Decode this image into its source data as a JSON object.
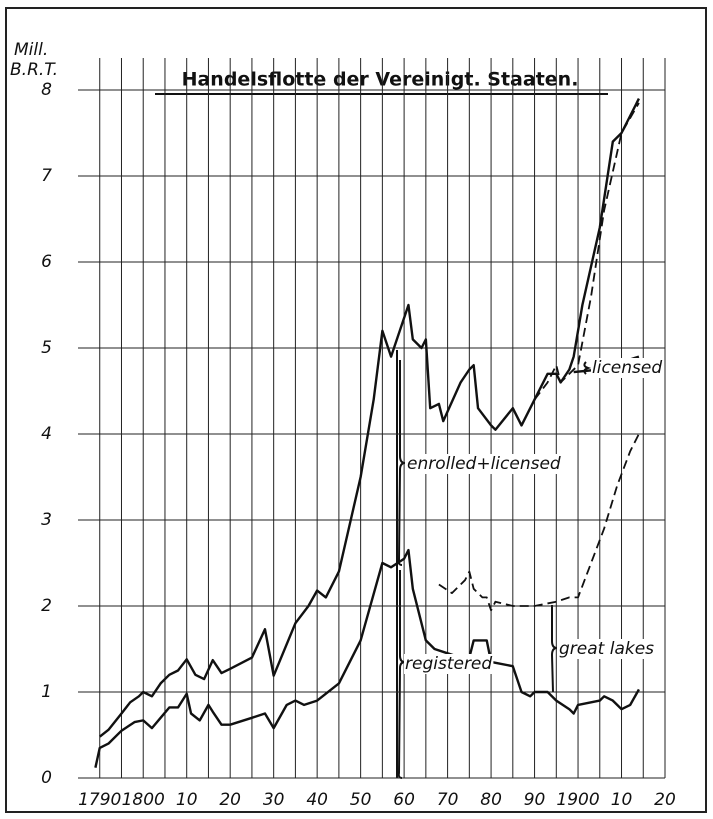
{
  "chart_data": {
    "type": "line",
    "title": "Handelsflotte der Vereinigt. Staaten.",
    "ylabel": [
      "Mill.",
      "B.R.T."
    ],
    "xlim": [
      1785,
      1920
    ],
    "ylim": [
      0,
      8
    ],
    "xticks": [
      {
        "value": 1790,
        "label": "1790"
      },
      {
        "value": 1800,
        "label": "1800"
      },
      {
        "value": 1810,
        "label": "10"
      },
      {
        "value": 1820,
        "label": "20"
      },
      {
        "value": 1830,
        "label": "30"
      },
      {
        "value": 1840,
        "label": "40"
      },
      {
        "value": 1850,
        "label": "50"
      },
      {
        "value": 1860,
        "label": "60"
      },
      {
        "value": 1870,
        "label": "70"
      },
      {
        "value": 1880,
        "label": "80"
      },
      {
        "value": 1890,
        "label": "90"
      },
      {
        "value": 1900,
        "label": "1900"
      },
      {
        "value": 1910,
        "label": "10"
      },
      {
        "value": 1920,
        "label": "20"
      }
    ],
    "yticks": [
      0,
      1,
      2,
      3,
      4,
      5,
      6,
      7,
      8
    ],
    "grid": true,
    "series": [
      {
        "color": "#111",
        "dash": false,
        "x": [
          1790,
          1792,
          1795,
          1797,
          1799,
          1800,
          1802,
          1804,
          1806,
          1808,
          1810,
          1812,
          1814,
          1816,
          1818,
          1820,
          1825,
          1828,
          1830,
          1835,
          1838,
          1840,
          1842,
          1845,
          1850,
          1853,
          1855,
          1857,
          1860,
          1861,
          1862,
          1864,
          1865,
          1866,
          1868,
          1869,
          1873,
          1875,
          1876,
          1877,
          1880,
          1881,
          1885,
          1887,
          1890,
          1893,
          1895,
          1896,
          1898,
          1899,
          1901,
          1905,
          1908,
          1910,
          1914
        ],
        "values": [
          0.48,
          0.56,
          0.75,
          0.88,
          0.95,
          1.0,
          0.95,
          1.1,
          1.2,
          1.25,
          1.38,
          1.2,
          1.15,
          1.37,
          1.22,
          1.27,
          1.4,
          1.73,
          1.19,
          1.8,
          2.0,
          2.18,
          2.1,
          2.4,
          3.5,
          4.4,
          5.2,
          4.9,
          5.35,
          5.5,
          5.1,
          5.0,
          5.1,
          4.3,
          4.35,
          4.15,
          4.6,
          4.75,
          4.8,
          4.3,
          4.1,
          4.05,
          4.3,
          4.1,
          4.4,
          4.7,
          4.7,
          4.6,
          4.75,
          4.9,
          5.5,
          6.4,
          7.4,
          7.5,
          7.9
        ]
      },
      {
        "color": "#111",
        "dash": false,
        "x": [
          1789,
          1790,
          1792,
          1795,
          1798,
          1800,
          1802,
          1804,
          1806,
          1808,
          1810,
          1811,
          1813,
          1815,
          1816,
          1818,
          1820,
          1825,
          1828,
          1830,
          1833,
          1835,
          1837,
          1840,
          1845,
          1850,
          1855,
          1857,
          1860,
          1861,
          1862,
          1865,
          1867,
          1870,
          1873,
          1875,
          1876,
          1879,
          1880,
          1885,
          1887,
          1889,
          1890,
          1893,
          1895,
          1898,
          1899,
          1900,
          1905,
          1906,
          1908,
          1909,
          1910,
          1912,
          1914
        ],
        "values": [
          0.12,
          0.35,
          0.4,
          0.55,
          0.65,
          0.67,
          0.58,
          0.7,
          0.82,
          0.82,
          0.98,
          0.75,
          0.67,
          0.85,
          0.77,
          0.62,
          0.62,
          0.7,
          0.75,
          0.58,
          0.85,
          0.9,
          0.85,
          0.9,
          1.1,
          1.6,
          2.5,
          2.45,
          2.55,
          2.65,
          2.2,
          1.6,
          1.5,
          1.45,
          1.4,
          1.4,
          1.6,
          1.6,
          1.35,
          1.3,
          1.0,
          0.95,
          1.0,
          1.0,
          0.9,
          0.8,
          0.75,
          0.85,
          0.9,
          0.95,
          0.9,
          0.85,
          0.8,
          0.85,
          1.03
        ]
      },
      {
        "color": "#111",
        "dash": true,
        "x": [
          1868,
          1871,
          1874,
          1875,
          1876,
          1878,
          1879,
          1880,
          1881,
          1885,
          1890,
          1895,
          1898,
          1900,
          1903,
          1906,
          1909,
          1912,
          1914
        ],
        "values": [
          2.25,
          2.15,
          2.3,
          2.4,
          2.2,
          2.1,
          2.1,
          1.95,
          2.05,
          2.0,
          2.0,
          2.05,
          2.1,
          2.1,
          2.5,
          2.9,
          3.4,
          3.8,
          4.0
        ]
      },
      {
        "color": "#111",
        "dash": true,
        "x": [
          1890,
          1893,
          1895,
          1896,
          1898,
          1900,
          1903,
          1906,
          1910,
          1914
        ],
        "values": [
          4.4,
          4.6,
          4.8,
          4.6,
          4.7,
          4.8,
          5.6,
          6.6,
          7.5,
          7.85
        ]
      },
      {
        "color": "#111",
        "dash": false,
        "x": [
          1899,
          1905,
          1914
        ],
        "values": [
          4.72,
          4.75,
          4.9
        ]
      }
    ],
    "annotations": [
      "licensed",
      "enrolled+licensed",
      "registered",
      "great lakes"
    ]
  }
}
